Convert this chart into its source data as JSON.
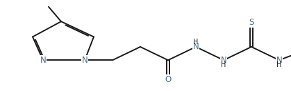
{
  "bg_color": "#ffffff",
  "line_color": "#1a1a1a",
  "heteroatom_color": "#4a6e8a",
  "line_width": 1.4,
  "font_size": 8.5,
  "fig_width": 4.19,
  "fig_height": 1.32,
  "dpi": 100,
  "xlim": [
    0,
    10.5
  ],
  "ylim": [
    0,
    3.2
  ]
}
